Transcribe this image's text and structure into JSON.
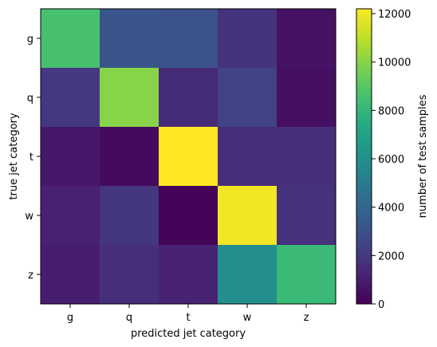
{
  "chart_data": {
    "type": "heatmap",
    "x_categories": [
      "g",
      "q",
      "t",
      "w",
      "z"
    ],
    "y_categories": [
      "g",
      "q",
      "t",
      "w",
      "z"
    ],
    "values": [
      [
        8600,
        3200,
        3100,
        1800,
        600
      ],
      [
        2000,
        10000,
        1500,
        2400,
        500
      ],
      [
        800,
        300,
        12200,
        1600,
        1600
      ],
      [
        1100,
        1900,
        100,
        12000,
        1700
      ],
      [
        1000,
        1600,
        1200,
        6000,
        8200
      ]
    ],
    "xlabel": "predicted jet category",
    "ylabel": "true jet category",
    "colorbar": {
      "label": "number of test samples",
      "min": 0,
      "max": 12200,
      "ticks": [
        "0",
        "2000",
        "4000",
        "6000",
        "8000",
        "10000",
        "12000"
      ],
      "colormap": "viridis"
    }
  }
}
